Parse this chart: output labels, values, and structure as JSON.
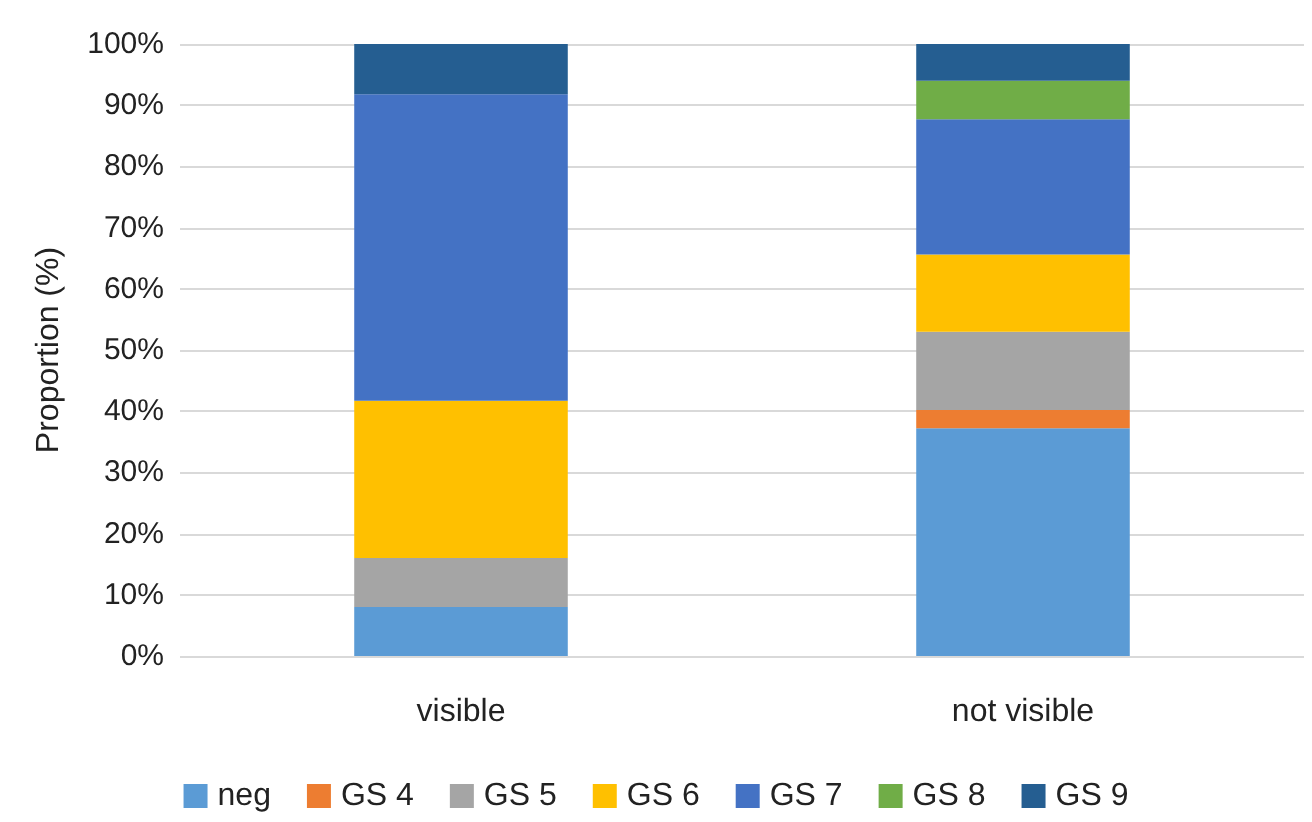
{
  "chart_data": {
    "type": "bar",
    "stacked": true,
    "ylabel": "Proportion (%)",
    "categories": [
      "visible",
      "not visible"
    ],
    "series": [
      {
        "name": "neg",
        "color": "#5b9bd5",
        "values": [
          8.0,
          37.2
        ]
      },
      {
        "name": "GS 4",
        "color": "#ed7d31",
        "values": [
          0,
          3.0
        ]
      },
      {
        "name": "GS 5",
        "color": "#a5a5a5",
        "values": [
          8.0,
          12.8
        ]
      },
      {
        "name": "GS 6",
        "color": "#ffc000",
        "values": [
          25.7,
          12.6
        ]
      },
      {
        "name": "GS 7",
        "color": "#4472c4",
        "values": [
          50.1,
          22.1
        ]
      },
      {
        "name": "GS 8",
        "color": "#70ad47",
        "values": [
          0,
          6.3
        ]
      },
      {
        "name": "GS 9",
        "color": "#255e91",
        "values": [
          8.2,
          6.0
        ]
      }
    ],
    "ylim": [
      0,
      100
    ],
    "yticks": [
      {
        "value": 0,
        "label": "0%"
      },
      {
        "value": 10,
        "label": "10%"
      },
      {
        "value": 20,
        "label": "20%"
      },
      {
        "value": 30,
        "label": "30%"
      },
      {
        "value": 40,
        "label": "40%"
      },
      {
        "value": 50,
        "label": "50%"
      },
      {
        "value": 60,
        "label": "60%"
      },
      {
        "value": 70,
        "label": "70%"
      },
      {
        "value": 80,
        "label": "80%"
      },
      {
        "value": 90,
        "label": "90%"
      },
      {
        "value": 100,
        "label": "100%"
      }
    ],
    "grid": "y",
    "legend": "bottom"
  }
}
